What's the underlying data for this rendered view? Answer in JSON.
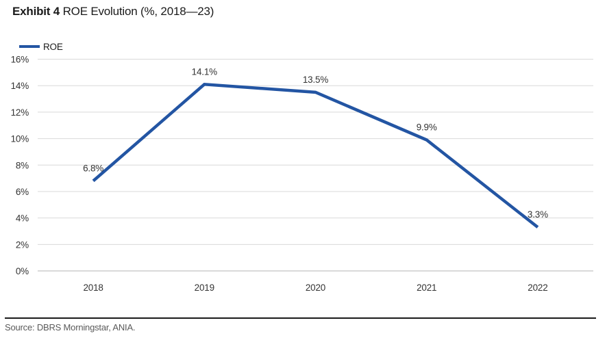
{
  "title": {
    "prefix": "Exhibit 4",
    "text": "ROE Evolution (%, 2018—23)"
  },
  "legend": {
    "label": "ROE"
  },
  "source": "Source: DBRS Morningstar, ANIA.",
  "colors": {
    "line": "#2355a3",
    "grid": "#d9d9d9",
    "axis_zero": "#b3b3b3",
    "tick_text": "#333333",
    "title_text": "#1a1a1a",
    "source_text": "#595959",
    "footer_rule": "#1a1a1a"
  },
  "chart_data": {
    "type": "line",
    "categories": [
      "2018",
      "2019",
      "2020",
      "2021",
      "2022"
    ],
    "series": [
      {
        "name": "ROE",
        "values": [
          6.8,
          14.1,
          13.5,
          9.9,
          3.3
        ]
      }
    ],
    "point_labels": [
      "6.8%",
      "14.1%",
      "13.5%",
      "9.9%",
      "3.3%"
    ],
    "title": "ROE Evolution (%, 2018—23)",
    "xlabel": "",
    "ylabel": "",
    "ylim": [
      0,
      16
    ],
    "ytick_step": 2,
    "ytick_suffix": "%",
    "grid": true,
    "legend_position": "top-left",
    "line_width": 4.5
  }
}
